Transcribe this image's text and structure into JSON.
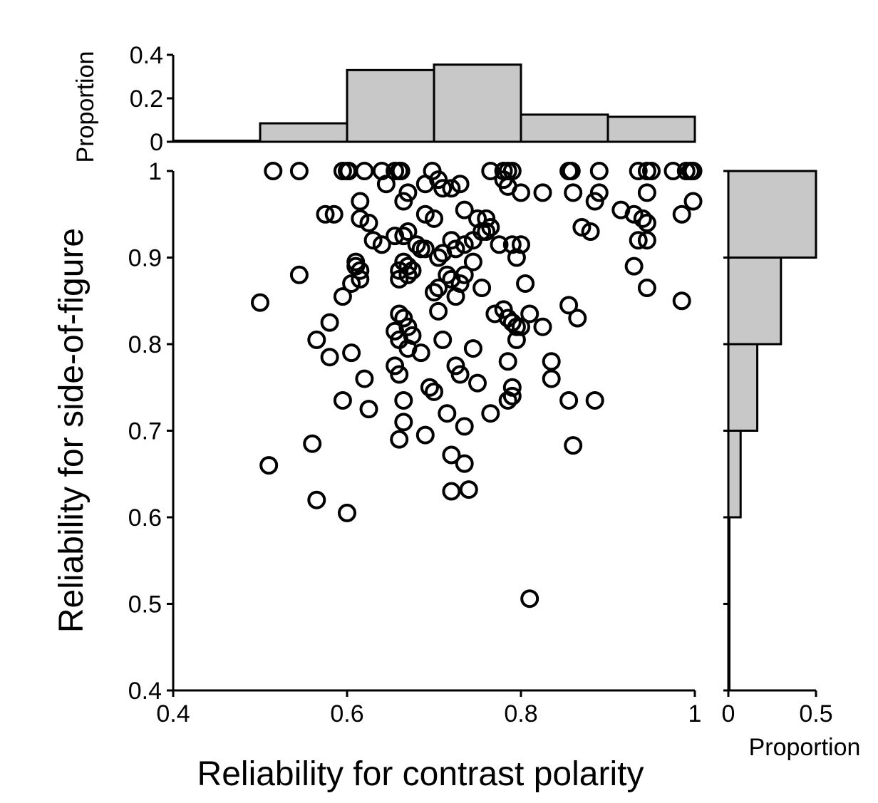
{
  "chart_data": {
    "type": "scatter",
    "main": {
      "xlabel": "Reliability for contrast polarity",
      "ylabel": "Reliability for side-of-figure",
      "xlim": [
        0.4,
        1.0
      ],
      "ylim": [
        0.4,
        1.0
      ],
      "xticks": [
        "0.4",
        "0.6",
        "0.8",
        "1"
      ],
      "yticks": [
        "0.4",
        "0.5",
        "0.6",
        "0.7",
        "0.8",
        "0.9",
        "1"
      ],
      "marker": "open-circle",
      "points": [
        [
          0.515,
          1.0
        ],
        [
          0.545,
          1.0
        ],
        [
          0.595,
          1.0
        ],
        [
          0.6,
          1.0
        ],
        [
          0.602,
          1.0
        ],
        [
          0.62,
          1.0
        ],
        [
          0.64,
          1.0
        ],
        [
          0.655,
          1.0
        ],
        [
          0.66,
          1.0
        ],
        [
          0.662,
          1.0
        ],
        [
          0.698,
          1.0
        ],
        [
          0.765,
          1.0
        ],
        [
          0.78,
          1.0
        ],
        [
          0.785,
          1.0
        ],
        [
          0.79,
          1.0
        ],
        [
          0.855,
          1.0
        ],
        [
          0.858,
          1.0
        ],
        [
          0.89,
          1.0
        ],
        [
          0.935,
          1.0
        ],
        [
          0.945,
          1.0
        ],
        [
          0.95,
          1.0
        ],
        [
          0.975,
          1.0
        ],
        [
          0.99,
          1.0
        ],
        [
          0.995,
          1.0
        ],
        [
          0.998,
          1.0
        ],
        [
          0.645,
          0.985
        ],
        [
          0.67,
          0.975
        ],
        [
          0.69,
          0.985
        ],
        [
          0.705,
          0.99
        ],
        [
          0.71,
          0.98
        ],
        [
          0.72,
          0.98
        ],
        [
          0.73,
          0.985
        ],
        [
          0.78,
          0.99
        ],
        [
          0.785,
          0.982
        ],
        [
          0.8,
          0.975
        ],
        [
          0.825,
          0.975
        ],
        [
          0.86,
          0.975
        ],
        [
          0.89,
          0.975
        ],
        [
          0.945,
          0.975
        ],
        [
          0.998,
          0.965
        ],
        [
          0.665,
          0.965
        ],
        [
          0.615,
          0.965
        ],
        [
          0.885,
          0.965
        ],
        [
          0.575,
          0.95
        ],
        [
          0.585,
          0.95
        ],
        [
          0.615,
          0.945
        ],
        [
          0.625,
          0.94
        ],
        [
          0.69,
          0.95
        ],
        [
          0.7,
          0.945
        ],
        [
          0.735,
          0.955
        ],
        [
          0.75,
          0.945
        ],
        [
          0.76,
          0.945
        ],
        [
          0.765,
          0.935
        ],
        [
          0.87,
          0.935
        ],
        [
          0.88,
          0.93
        ],
        [
          0.915,
          0.955
        ],
        [
          0.93,
          0.95
        ],
        [
          0.94,
          0.945
        ],
        [
          0.945,
          0.94
        ],
        [
          0.985,
          0.95
        ],
        [
          0.63,
          0.92
        ],
        [
          0.64,
          0.915
        ],
        [
          0.655,
          0.925
        ],
        [
          0.665,
          0.925
        ],
        [
          0.67,
          0.93
        ],
        [
          0.68,
          0.915
        ],
        [
          0.685,
          0.91
        ],
        [
          0.69,
          0.91
        ],
        [
          0.705,
          0.9
        ],
        [
          0.71,
          0.905
        ],
        [
          0.72,
          0.92
        ],
        [
          0.725,
          0.91
        ],
        [
          0.735,
          0.915
        ],
        [
          0.745,
          0.92
        ],
        [
          0.755,
          0.93
        ],
        [
          0.76,
          0.93
        ],
        [
          0.775,
          0.915
        ],
        [
          0.79,
          0.915
        ],
        [
          0.8,
          0.915
        ],
        [
          0.795,
          0.9
        ],
        [
          0.61,
          0.895
        ],
        [
          0.61,
          0.89
        ],
        [
          0.615,
          0.885
        ],
        [
          0.66,
          0.885
        ],
        [
          0.665,
          0.895
        ],
        [
          0.67,
          0.89
        ],
        [
          0.675,
          0.885
        ],
        [
          0.745,
          0.895
        ],
        [
          0.935,
          0.92
        ],
        [
          0.945,
          0.92
        ],
        [
          0.93,
          0.89
        ],
        [
          0.545,
          0.88
        ],
        [
          0.605,
          0.87
        ],
        [
          0.615,
          0.875
        ],
        [
          0.66,
          0.875
        ],
        [
          0.67,
          0.88
        ],
        [
          0.715,
          0.88
        ],
        [
          0.72,
          0.875
        ],
        [
          0.73,
          0.87
        ],
        [
          0.735,
          0.88
        ],
        [
          0.595,
          0.855
        ],
        [
          0.5,
          0.848
        ],
        [
          0.7,
          0.86
        ],
        [
          0.705,
          0.865
        ],
        [
          0.725,
          0.855
        ],
        [
          0.755,
          0.865
        ],
        [
          0.805,
          0.87
        ],
        [
          0.945,
          0.865
        ],
        [
          0.985,
          0.85
        ],
        [
          0.66,
          0.835
        ],
        [
          0.665,
          0.83
        ],
        [
          0.705,
          0.838
        ],
        [
          0.77,
          0.835
        ],
        [
          0.78,
          0.84
        ],
        [
          0.785,
          0.83
        ],
        [
          0.79,
          0.825
        ],
        [
          0.795,
          0.82
        ],
        [
          0.81,
          0.835
        ],
        [
          0.855,
          0.845
        ],
        [
          0.865,
          0.83
        ],
        [
          0.58,
          0.825
        ],
        [
          0.655,
          0.815
        ],
        [
          0.67,
          0.82
        ],
        [
          0.675,
          0.81
        ],
        [
          0.8,
          0.82
        ],
        [
          0.825,
          0.82
        ],
        [
          0.565,
          0.805
        ],
        [
          0.605,
          0.79
        ],
        [
          0.66,
          0.805
        ],
        [
          0.67,
          0.795
        ],
        [
          0.685,
          0.79
        ],
        [
          0.71,
          0.805
        ],
        [
          0.745,
          0.795
        ],
        [
          0.795,
          0.805
        ],
        [
          0.58,
          0.785
        ],
        [
          0.655,
          0.775
        ],
        [
          0.66,
          0.765
        ],
        [
          0.725,
          0.775
        ],
        [
          0.73,
          0.765
        ],
        [
          0.785,
          0.78
        ],
        [
          0.835,
          0.78
        ],
        [
          0.835,
          0.76
        ],
        [
          0.62,
          0.76
        ],
        [
          0.695,
          0.75
        ],
        [
          0.7,
          0.745
        ],
        [
          0.75,
          0.755
        ],
        [
          0.79,
          0.75
        ],
        [
          0.79,
          0.74
        ],
        [
          0.595,
          0.735
        ],
        [
          0.665,
          0.735
        ],
        [
          0.855,
          0.735
        ],
        [
          0.885,
          0.735
        ],
        [
          0.785,
          0.735
        ],
        [
          0.625,
          0.725
        ],
        [
          0.715,
          0.72
        ],
        [
          0.765,
          0.72
        ],
        [
          0.665,
          0.71
        ],
        [
          0.735,
          0.705
        ],
        [
          0.69,
          0.695
        ],
        [
          0.66,
          0.69
        ],
        [
          0.56,
          0.685
        ],
        [
          0.86,
          0.683
        ],
        [
          0.72,
          0.672
        ],
        [
          0.735,
          0.662
        ],
        [
          0.51,
          0.66
        ],
        [
          0.72,
          0.63
        ],
        [
          0.74,
          0.632
        ],
        [
          0.565,
          0.62
        ],
        [
          0.6,
          0.605
        ],
        [
          0.81,
          0.506
        ]
      ]
    },
    "top_histogram": {
      "type": "bar",
      "ylabel": "Proportion",
      "yticks": [
        "0",
        "0.2",
        "0.4"
      ],
      "ylim": [
        0,
        0.4
      ],
      "bin_edges": [
        0.4,
        0.5,
        0.6,
        0.7,
        0.8,
        0.9,
        1.0
      ],
      "values": [
        0.005,
        0.085,
        0.33,
        0.355,
        0.125,
        0.115
      ]
    },
    "right_histogram": {
      "type": "bar",
      "orientation": "horizontal",
      "xlabel": "Proportion",
      "xticks": [
        "0",
        "0.5"
      ],
      "xlim": [
        0,
        0.5
      ],
      "bin_edges": [
        0.4,
        0.5,
        0.6,
        0.7,
        0.8,
        0.9,
        1.0
      ],
      "values": [
        0.006,
        0.006,
        0.07,
        0.165,
        0.3,
        0.5
      ]
    },
    "colors": {
      "bar_fill": "#c8c8c8",
      "stroke": "#000000"
    }
  }
}
